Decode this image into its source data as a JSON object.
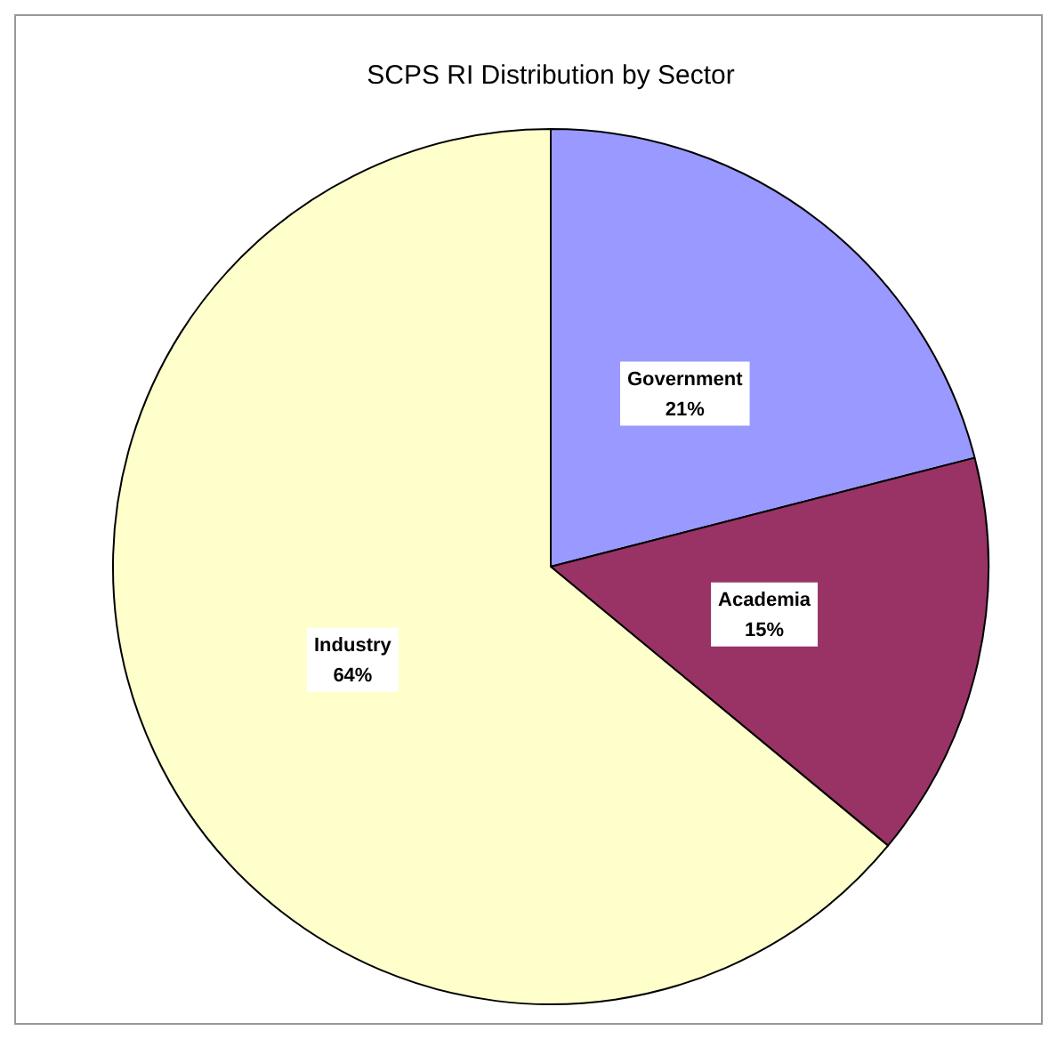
{
  "chart_data": {
    "type": "pie",
    "title": "SCPS RI Distribution by Sector",
    "categories": [
      "Government",
      "Academia",
      "Industry"
    ],
    "values": [
      21,
      15,
      64
    ],
    "colors": [
      "#9999ff",
      "#993366",
      "#ffffcc"
    ],
    "value_labels": [
      "21%",
      "15%",
      "64%"
    ],
    "legend": false
  }
}
